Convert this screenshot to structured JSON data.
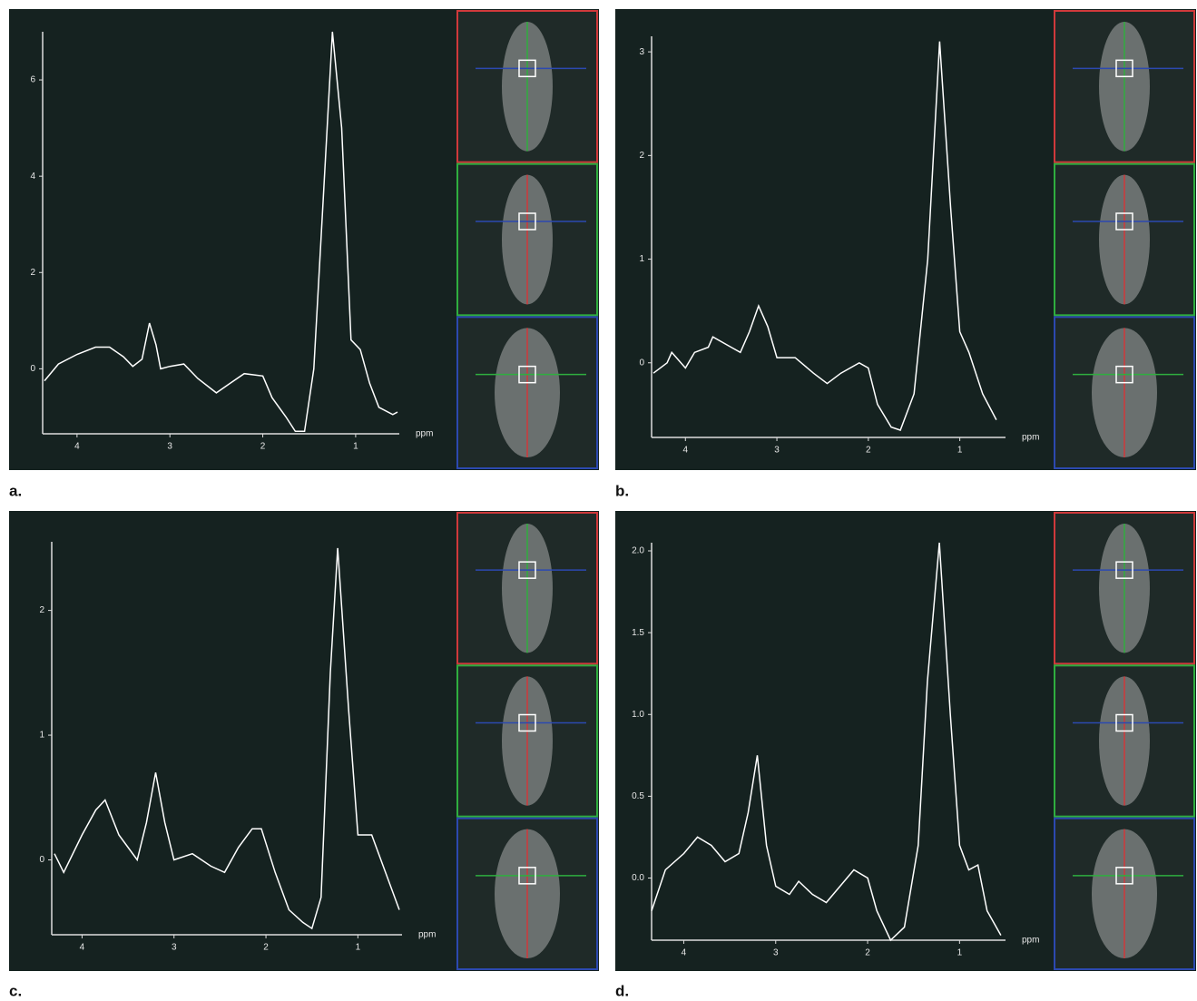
{
  "chart_data": [
    {
      "type": "line",
      "label": "a.",
      "x_label": "ppm",
      "color": "#ffffff",
      "x": [
        4.35,
        4.2,
        4.0,
        3.8,
        3.65,
        3.5,
        3.4,
        3.3,
        3.22,
        3.15,
        3.1,
        3.0,
        2.85,
        2.7,
        2.5,
        2.35,
        2.2,
        2.0,
        1.9,
        1.75,
        1.65,
        1.55,
        1.45,
        1.35,
        1.25,
        1.15,
        1.05,
        0.95,
        0.85,
        0.75,
        0.6,
        0.55
      ],
      "values": [
        -0.25,
        0.1,
        0.3,
        0.45,
        0.45,
        0.25,
        0.05,
        0.2,
        0.95,
        0.5,
        0.0,
        0.05,
        0.1,
        -0.2,
        -0.5,
        -0.3,
        -0.1,
        -0.15,
        -0.6,
        -1.0,
        -1.3,
        -1.3,
        0.0,
        3.5,
        7.0,
        5.0,
        0.6,
        0.4,
        -0.3,
        -0.8,
        -0.95,
        -0.9
      ],
      "xlim": [
        4.37,
        0.53
      ],
      "ylim": [
        -1.35,
        7
      ],
      "xticks": [
        4,
        3,
        2,
        1
      ],
      "yticks": [
        0,
        2,
        4,
        6
      ]
    },
    {
      "type": "line",
      "label": "b.",
      "x_label": "ppm",
      "color": "#ffffff",
      "x": [
        4.35,
        4.2,
        4.15,
        4.0,
        3.9,
        3.75,
        3.7,
        3.5,
        3.4,
        3.3,
        3.2,
        3.1,
        3.0,
        2.8,
        2.6,
        2.45,
        2.3,
        2.1,
        2.0,
        1.9,
        1.75,
        1.65,
        1.5,
        1.35,
        1.22,
        1.1,
        1.0,
        0.9,
        0.75,
        0.6
      ],
      "values": [
        -0.1,
        0.0,
        0.1,
        -0.05,
        0.1,
        0.15,
        0.25,
        0.15,
        0.1,
        0.3,
        0.55,
        0.35,
        0.05,
        0.05,
        -0.1,
        -0.2,
        -0.1,
        0.0,
        -0.05,
        -0.4,
        -0.62,
        -0.65,
        -0.3,
        1.0,
        3.1,
        1.5,
        0.3,
        0.1,
        -0.3,
        -0.55
      ],
      "xlim": [
        4.37,
        0.5
      ],
      "ylim": [
        -0.72,
        3.15
      ],
      "xticks": [
        4,
        3,
        2,
        1
      ],
      "yticks": [
        0,
        1,
        2,
        3
      ]
    },
    {
      "type": "line",
      "label": "c.",
      "x_label": "ppm",
      "color": "#ffffff",
      "x": [
        4.3,
        4.2,
        4.0,
        3.85,
        3.75,
        3.6,
        3.4,
        3.3,
        3.2,
        3.1,
        3.0,
        2.8,
        2.6,
        2.45,
        2.3,
        2.15,
        2.05,
        1.9,
        1.75,
        1.6,
        1.5,
        1.4,
        1.3,
        1.22,
        1.1,
        1.0,
        0.85,
        0.7,
        0.55
      ],
      "values": [
        0.05,
        -0.1,
        0.2,
        0.4,
        0.48,
        0.2,
        0.0,
        0.3,
        0.7,
        0.3,
        0.0,
        0.05,
        -0.05,
        -0.1,
        0.1,
        0.25,
        0.25,
        -0.1,
        -0.4,
        -0.5,
        -0.55,
        -0.3,
        1.5,
        2.5,
        1.2,
        0.2,
        0.2,
        -0.1,
        -0.4
      ],
      "xlim": [
        4.33,
        0.52
      ],
      "ylim": [
        -0.6,
        2.55
      ],
      "xticks": [
        4,
        3,
        2,
        1
      ],
      "yticks": [
        0,
        1,
        2
      ]
    },
    {
      "type": "line",
      "label": "d.",
      "x_label": "ppm",
      "color": "#ffffff",
      "x": [
        4.35,
        4.2,
        4.0,
        3.85,
        3.7,
        3.55,
        3.4,
        3.3,
        3.2,
        3.1,
        3.0,
        2.85,
        2.75,
        2.6,
        2.45,
        2.3,
        2.15,
        2.0,
        1.9,
        1.75,
        1.6,
        1.45,
        1.35,
        1.22,
        1.1,
        1.0,
        0.9,
        0.8,
        0.7,
        0.55
      ],
      "values": [
        -0.2,
        0.05,
        0.15,
        0.25,
        0.2,
        0.1,
        0.15,
        0.4,
        0.75,
        0.2,
        -0.05,
        -0.1,
        -0.02,
        -0.1,
        -0.15,
        -0.05,
        0.05,
        0.0,
        -0.2,
        -0.38,
        -0.3,
        0.2,
        1.2,
        2.05,
        1.0,
        0.2,
        0.05,
        0.08,
        -0.2,
        -0.35
      ],
      "xlim": [
        4.35,
        0.5
      ],
      "ylim": [
        -0.38,
        2.05
      ],
      "xticks": [
        4,
        3,
        2,
        1
      ],
      "yticks": [
        {
          "value": 0,
          "label": "0.0"
        },
        0.5,
        {
          "value": 1,
          "label": "1.0"
        },
        1.5,
        {
          "value": 2,
          "label": "2.0"
        }
      ]
    }
  ]
}
